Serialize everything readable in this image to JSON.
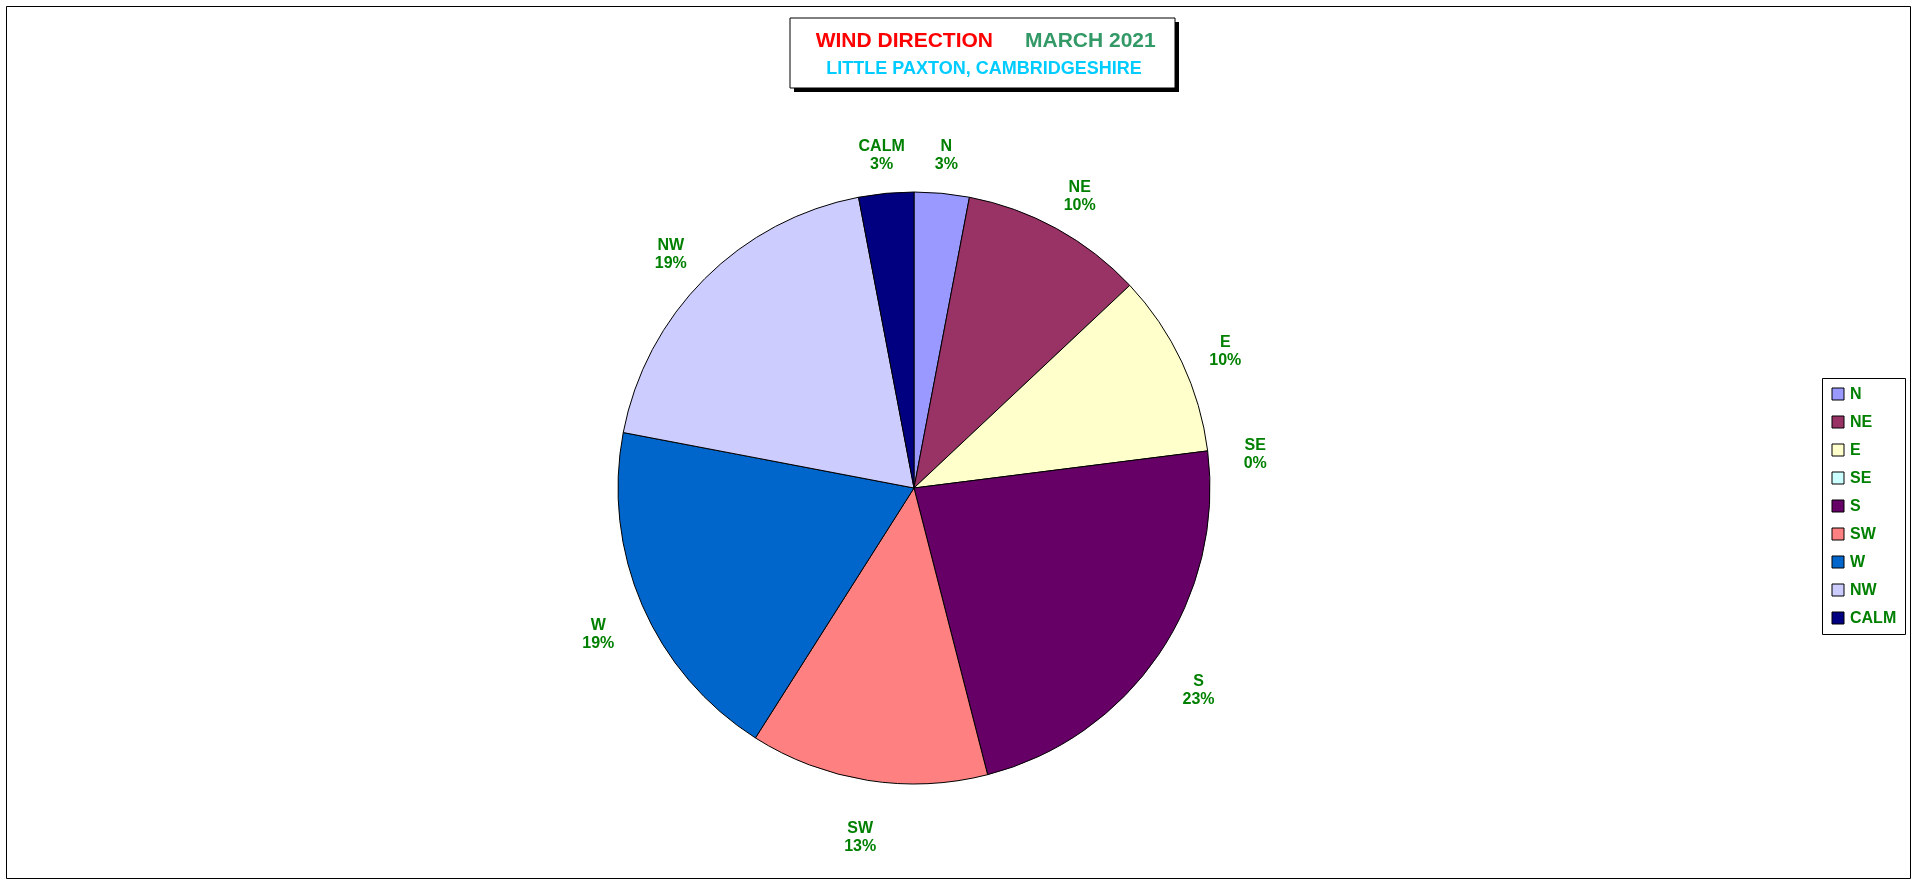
{
  "chart_data": {
    "type": "pie",
    "title": "WIND DIRECTION",
    "subtitle": "LITTLE PAXTON, CAMBRIDGESHIRE",
    "annotations": [
      "MARCH 2021"
    ],
    "categories": [
      "N",
      "NE",
      "E",
      "SE",
      "S",
      "SW",
      "W",
      "NW",
      "CALM"
    ],
    "values": [
      3,
      10,
      10,
      0,
      23,
      13,
      19,
      19,
      3
    ],
    "value_labels": [
      "3%",
      "10%",
      "10%",
      "0%",
      "23%",
      "13%",
      "19%",
      "19%",
      "3%"
    ],
    "colors": [
      "#9999ff",
      "#993366",
      "#ffffcc",
      "#ccffff",
      "#660066",
      "#ff8080",
      "#0066cc",
      "#ccccff",
      "#000080"
    ],
    "legend": "right"
  }
}
